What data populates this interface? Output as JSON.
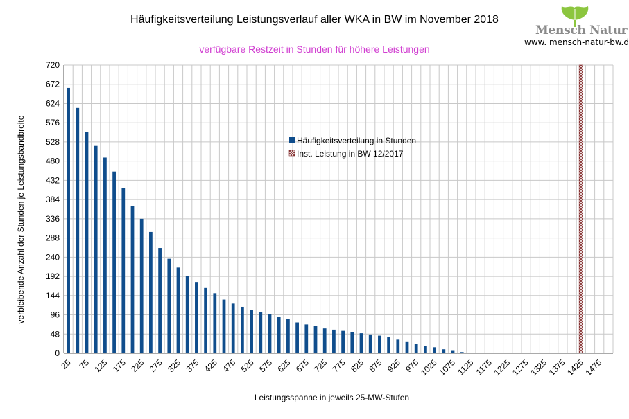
{
  "title": "Häufigkeitsverteilung Leistungsverlauf aller WKA in BW im November 2018",
  "subtitle": "verfügbare Restzeit in Stunden für höhere Leistungen",
  "logo": {
    "name": "Mensch Natur",
    "url": "www. mensch-natur-bw.de"
  },
  "colors": {
    "bar": "#0f4d8c",
    "subtitle": "#d13fd1",
    "marker": "#7a1f1f",
    "grid": "#c8c8c8"
  },
  "chart_data": {
    "type": "bar",
    "xlabel": "Leistungsspanne in jeweils 25-MW-Stufen",
    "ylabel": "verbleibende Anzahl der Stunden je Leistungsbandbreite",
    "ylim": [
      0,
      720
    ],
    "y_ticks": [
      0,
      48,
      96,
      144,
      192,
      240,
      288,
      336,
      384,
      432,
      480,
      528,
      576,
      624,
      672,
      720
    ],
    "x_tick_labels": [
      "25",
      "75",
      "125",
      "175",
      "225",
      "275",
      "325",
      "375",
      "425",
      "475",
      "525",
      "575",
      "625",
      "675",
      "725",
      "775",
      "825",
      "875",
      "925",
      "975",
      "1025",
      "1075",
      "1125",
      "1175",
      "1225",
      "1275",
      "1325",
      "1375",
      "1425",
      "1475"
    ],
    "categories": [
      25,
      50,
      75,
      100,
      125,
      150,
      175,
      200,
      225,
      250,
      275,
      300,
      325,
      350,
      375,
      400,
      425,
      450,
      475,
      500,
      525,
      550,
      575,
      600,
      625,
      650,
      675,
      700,
      725,
      750,
      775,
      800,
      825,
      850,
      875,
      900,
      925,
      950,
      975,
      1000,
      1025,
      1050,
      1075,
      1100,
      1125,
      1150,
      1175,
      1200,
      1225,
      1250,
      1275,
      1300,
      1325,
      1350,
      1375,
      1400,
      1425,
      1450,
      1475,
      1500
    ],
    "grid": true,
    "legend_position": "center",
    "series": [
      {
        "name": "Häufigkeitsverteilung in Stunden",
        "values": [
          663,
          613,
          553,
          518,
          489,
          454,
          412,
          368,
          336,
          303,
          263,
          236,
          214,
          193,
          178,
          163,
          150,
          134,
          124,
          116,
          109,
          103,
          97,
          91,
          85,
          77,
          72,
          69,
          62,
          59,
          56,
          53,
          50,
          47,
          44,
          40,
          34,
          28,
          23,
          19,
          15,
          10,
          6,
          3,
          1,
          0,
          0,
          0,
          0,
          0,
          0,
          0,
          0,
          0,
          0,
          0,
          0,
          0,
          0,
          0
        ]
      },
      {
        "name": "Inst. Leistung in BW 12/2017",
        "x": 1425,
        "value": 720
      }
    ]
  }
}
